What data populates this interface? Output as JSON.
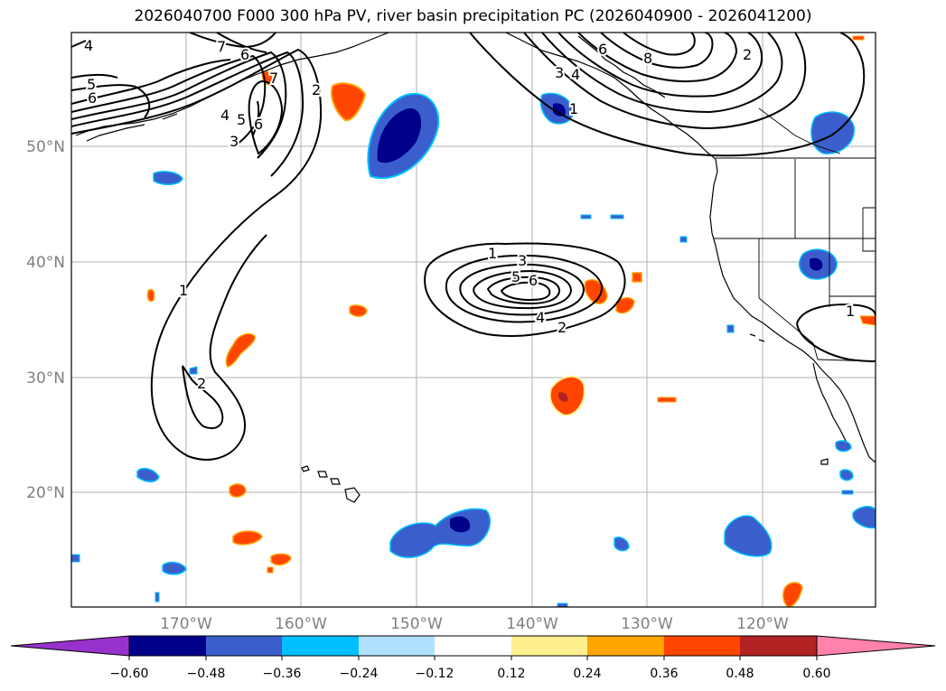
{
  "title": "2026040700 F000 300 hPa PV, river basin precipitation PC (2026040900 - 2026041200)",
  "map": {
    "lat_labels": [
      "50°N",
      "40°N",
      "30°N",
      "20°N"
    ],
    "lon_labels": [
      "170°W",
      "160°W",
      "150°W",
      "140°W",
      "130°W",
      "120°W"
    ],
    "contour_labels": [
      "4",
      "7",
      "6",
      "5",
      "6",
      "7",
      "2",
      "4",
      "5",
      "6",
      "3",
      "1",
      "2",
      "3",
      "4",
      "6",
      "8",
      "2",
      "1",
      "1",
      "3",
      "5",
      "6",
      "4",
      "2",
      "1",
      "1"
    ]
  },
  "colorbar": {
    "colors": [
      "#9932cc",
      "#00008b",
      "#3a5fcd",
      "#00bfff",
      "#b0e2ff",
      "#ffffff",
      "#fff08f",
      "#ffa500",
      "#ff4500",
      "#b22222",
      "#ff82ab"
    ],
    "ticks": [
      "−0.60",
      "−0.48",
      "−0.36",
      "−0.24",
      "−0.12",
      "0.12",
      "0.24",
      "0.36",
      "0.48",
      "0.60"
    ]
  }
}
